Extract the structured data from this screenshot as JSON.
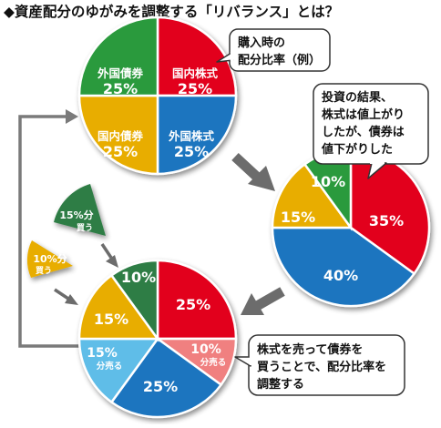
{
  "title": "◆資産配分のゆがみを調整する「リバランス」とは？",
  "colors": {
    "red": "#e2001d",
    "blue": "#1c74bf",
    "yellow": "#e8ad00",
    "green": "#2a9a3c",
    "light_red": "#f08080",
    "light_blue": "#5fbde8",
    "dark_green": "#2f7d45",
    "arrow_gray": "#6c6c6c",
    "line_gray": "#7a7a7a"
  },
  "pie1": {
    "callout": [
      "購入時の",
      "配分比率（例）"
    ],
    "slices": [
      {
        "id": "domestic-stock",
        "name": "国内株式",
        "value": 25,
        "label": "25%"
      },
      {
        "id": "foreign-stock",
        "name": "外国株式",
        "value": 25,
        "label": "25%"
      },
      {
        "id": "domestic-bond",
        "name": "国内債券",
        "value": 25,
        "label": "25%"
      },
      {
        "id": "foreign-bond",
        "name": "外国債券",
        "value": 25,
        "label": "25%"
      }
    ]
  },
  "pie2": {
    "callout": [
      "投資の結果、",
      "株式は値上がり",
      "したが、債券は",
      "値下がりした"
    ],
    "slices": [
      {
        "id": "domestic-stock",
        "value": 35,
        "label": "35%"
      },
      {
        "id": "foreign-stock",
        "value": 40,
        "label": "40%"
      },
      {
        "id": "domestic-bond",
        "value": 15,
        "label": "15%"
      },
      {
        "id": "foreign-bond",
        "value": 10,
        "label": "10%"
      }
    ]
  },
  "pie3": {
    "callout": [
      "株式を売って債券を",
      "買うことで、配分比率を",
      "調整する"
    ],
    "slices": [
      {
        "id": "domestic-stock",
        "value": 25,
        "label": "25%"
      },
      {
        "id": "domestic-stock-sold",
        "value": 10,
        "label": "10%",
        "sub": "分売る"
      },
      {
        "id": "foreign-stock",
        "value": 25,
        "label": "25%"
      },
      {
        "id": "foreign-stock-sold",
        "value": 15,
        "label": "15%",
        "sub": "分売る"
      },
      {
        "id": "domestic-bond",
        "value": 15,
        "label": "15%"
      },
      {
        "id": "foreign-bond",
        "value": 10,
        "label": "10%"
      }
    ]
  },
  "wedges": {
    "green": {
      "label": "15%分",
      "sub": "買う"
    },
    "yellow": {
      "label": "10%分",
      "sub": "買う"
    }
  }
}
